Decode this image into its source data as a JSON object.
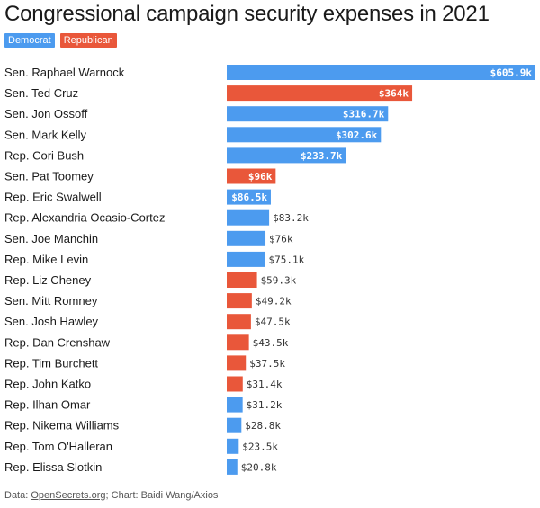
{
  "title": "Congressional campaign security expenses in 2021",
  "legend": [
    {
      "label": "Democrat",
      "color": "#4C9BEF"
    },
    {
      "label": "Republican",
      "color": "#E9573A"
    }
  ],
  "colors": {
    "Democrat": "#4C9BEF",
    "Republican": "#E9573A"
  },
  "chart_data": {
    "type": "bar",
    "orientation": "horizontal",
    "categories": [
      "Sen. Raphael Warnock",
      "Sen. Ted Cruz",
      "Sen. Jon Ossoff",
      "Sen. Mark Kelly",
      "Rep. Cori Bush",
      "Sen. Pat Toomey",
      "Rep. Eric Swalwell",
      "Rep. Alexandria Ocasio-Cortez",
      "Sen. Joe Manchin",
      "Rep. Mike Levin",
      "Rep. Liz Cheney",
      "Sen. Mitt Romney",
      "Sen. Josh Hawley",
      "Rep. Dan Crenshaw",
      "Rep. Tim Burchett",
      "Rep. John Katko",
      "Rep. Ilhan Omar",
      "Rep. Nikema Williams",
      "Rep. Tom O'Halleran",
      "Rep. Elissa Slotkin"
    ],
    "values": [
      605.9,
      364,
      316.7,
      302.6,
      233.7,
      96,
      86.5,
      83.2,
      76,
      75.1,
      59.3,
      49.2,
      47.5,
      43.5,
      37.5,
      31.4,
      31.2,
      28.8,
      23.5,
      20.8
    ],
    "value_labels": [
      "$605.9k",
      "$364k",
      "$316.7k",
      "$302.6k",
      "$233.7k",
      "$96k",
      "$86.5k",
      "$83.2k",
      "$76k",
      "$75.1k",
      "$59.3k",
      "$49.2k",
      "$47.5k",
      "$43.5k",
      "$37.5k",
      "$31.4k",
      "$31.2k",
      "$28.8k",
      "$23.5k",
      "$20.8k"
    ],
    "party": [
      "Democrat",
      "Republican",
      "Democrat",
      "Democrat",
      "Democrat",
      "Republican",
      "Democrat",
      "Democrat",
      "Democrat",
      "Democrat",
      "Republican",
      "Republican",
      "Republican",
      "Republican",
      "Republican",
      "Republican",
      "Democrat",
      "Democrat",
      "Democrat",
      "Democrat"
    ],
    "value_unit": "$ thousands",
    "xlim": [
      0,
      605.9
    ],
    "grid": false
  },
  "footer": {
    "prefix": "Data: ",
    "source": "OpenSecrets.org",
    "suffix": "; Chart: Baidi Wang/Axios"
  }
}
